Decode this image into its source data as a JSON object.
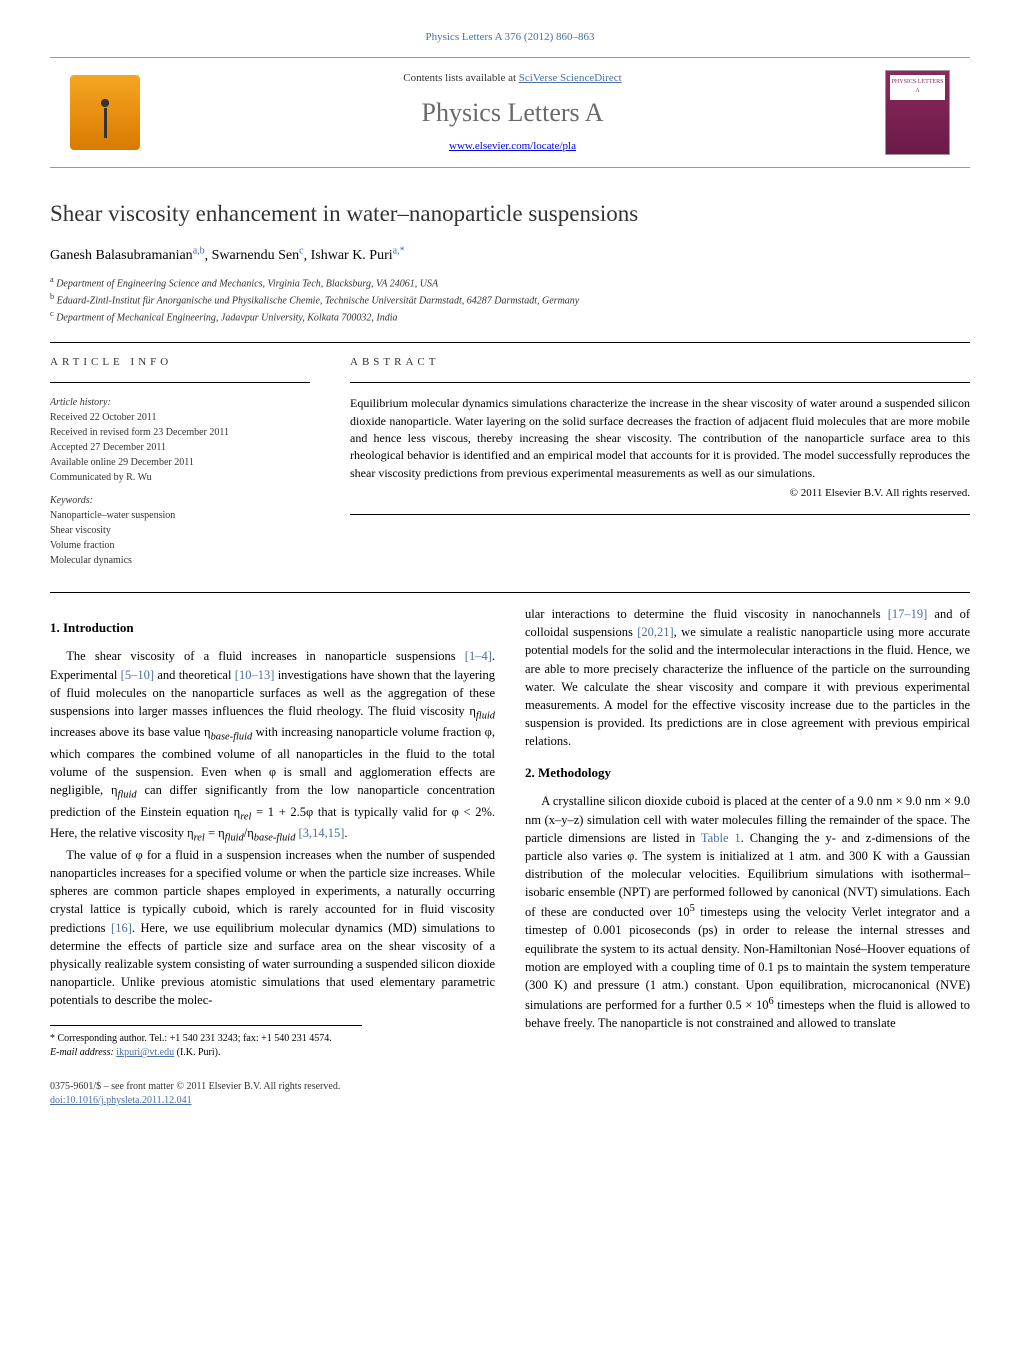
{
  "header": {
    "citation": "Physics Letters A 376 (2012) 860–863",
    "contents_line_prefix": "Contents lists available at ",
    "contents_link": "SciVerse ScienceDirect",
    "journal_name": "Physics Letters A",
    "journal_url": "www.elsevier.com/locate/pla",
    "cover_text": "PHYSICS LETTERS A"
  },
  "title": "Shear viscosity enhancement in water–nanoparticle suspensions",
  "authors": [
    {
      "name": "Ganesh Balasubramanian",
      "affil": "a,b"
    },
    {
      "name": "Swarnendu Sen",
      "affil": "c"
    },
    {
      "name": "Ishwar K. Puri",
      "affil": "a,*"
    }
  ],
  "affiliations": [
    {
      "sup": "a",
      "text": "Department of Engineering Science and Mechanics, Virginia Tech, Blacksburg, VA 24061, USA"
    },
    {
      "sup": "b",
      "text": "Eduard-Zintl-Institut für Anorganische und Physikalische Chemie, Technische Universität Darmstadt, 64287 Darmstadt, Germany"
    },
    {
      "sup": "c",
      "text": "Department of Mechanical Engineering, Jadavpur University, Kolkata 700032, India"
    }
  ],
  "article_info": {
    "heading": "ARTICLE INFO",
    "history_label": "Article history:",
    "history": [
      "Received 22 October 2011",
      "Received in revised form 23 December 2011",
      "Accepted 27 December 2011",
      "Available online 29 December 2011",
      "Communicated by R. Wu"
    ],
    "keywords_label": "Keywords:",
    "keywords": [
      "Nanoparticle–water suspension",
      "Shear viscosity",
      "Volume fraction",
      "Molecular dynamics"
    ]
  },
  "abstract": {
    "heading": "ABSTRACT",
    "text": "Equilibrium molecular dynamics simulations characterize the increase in the shear viscosity of water around a suspended silicon dioxide nanoparticle. Water layering on the solid surface decreases the fraction of adjacent fluid molecules that are more mobile and hence less viscous, thereby increasing the shear viscosity. The contribution of the nanoparticle surface area to this rheological behavior is identified and an empirical model that accounts for it is provided. The model successfully reproduces the shear viscosity predictions from previous experimental measurements as well as our simulations.",
    "copyright": "© 2011 Elsevier B.V. All rights reserved."
  },
  "sections": {
    "introduction": {
      "heading": "1. Introduction",
      "p1_a": "The shear viscosity of a fluid increases in nanoparticle suspensions ",
      "p1_ref1": "[1–4]",
      "p1_b": ". Experimental ",
      "p1_ref2": "[5–10]",
      "p1_c": " and theoretical ",
      "p1_ref3": "[10–13]",
      "p1_d": " investigations have shown that the layering of fluid molecules on the nanoparticle surfaces as well as the aggregation of these suspensions into larger masses influences the fluid rheology. The fluid viscosity η",
      "p1_e": " increases above its base value η",
      "p1_f": " with increasing nanoparticle volume fraction φ, which compares the combined volume of all nanoparticles in the fluid to the total volume of the suspension. Even when φ is small and agglomeration effects are negligible, η",
      "p1_g": " can differ significantly from the low nanoparticle concentration prediction of the Einstein equation η",
      "p1_h": " = 1 + 2.5φ that is typically valid for φ < 2%. Here, the relative viscosity η",
      "p1_i": " = η",
      "p1_j": "/η",
      "p1_k": " ",
      "p1_ref4": "[3,14,15]",
      "p1_l": ".",
      "p2_a": "The value of φ for a fluid in a suspension increases when the number of suspended nanoparticles increases for a specified volume or when the particle size increases. While spheres are common particle shapes employed in experiments, a naturally occurring crystal lattice is typically cuboid, which is rarely accounted for in fluid viscosity predictions ",
      "p2_ref1": "[16]",
      "p2_b": ". Here, we use equilibrium molecular dynamics (MD) simulations to determine the effects of particle size and surface area on the shear viscosity of a physically realizable system consisting of water surrounding a suspended silicon dioxide nanoparticle. Unlike previous atomistic simulations that used elementary parametric potentials to describe the molec-",
      "p3_a": "ular interactions to determine the fluid viscosity in nanochannels ",
      "p3_ref1": "[17–19]",
      "p3_b": " and of colloidal suspensions ",
      "p3_ref2": "[20,21]",
      "p3_c": ", we simulate a realistic nanoparticle using more accurate potential models for the solid and the intermolecular interactions in the fluid. Hence, we are able to more precisely characterize the influence of the particle on the surrounding water. We calculate the shear viscosity and compare it with previous experimental measurements. A model for the effective viscosity increase due to the particles in the suspension is provided. Its predictions are in close agreement with previous empirical relations."
    },
    "methodology": {
      "heading": "2. Methodology",
      "p1_a": "A crystalline silicon dioxide cuboid is placed at the center of a 9.0 nm × 9.0 nm × 9.0 nm (x–y–z) simulation cell with water molecules filling the remainder of the space. The particle dimensions are listed in ",
      "p1_ref1": "Table 1",
      "p1_b": ". Changing the y- and z-dimensions of the particle also varies φ. The system is initialized at 1 atm. and 300 K with a Gaussian distribution of the molecular velocities. Equilibrium simulations with isothermal–isobaric ensemble (NPT) are performed followed by canonical (NVT) simulations. Each of these are conducted over 10",
      "p1_c": " timesteps using the velocity Verlet integrator and a timestep of 0.001 picoseconds (ps) in order to release the internal stresses and equilibrate the system to its actual density. Non-Hamiltonian Nosé–Hoover equations of motion are employed with a coupling time of 0.1 ps to maintain the system temperature (300 K) and pressure (1 atm.) constant. Upon equilibration, microcanonical (NVE) simulations are performed for a further 0.5 × 10",
      "p1_d": " timesteps when the fluid is allowed to behave freely. The nanoparticle is not constrained and allowed to translate"
    }
  },
  "footnote": {
    "corr_label": "* Corresponding author. Tel.: +1 540 231 3243; fax: +1 540 231 4574.",
    "email_label": "E-mail address: ",
    "email": "ikpuri@vt.edu",
    "email_suffix": " (I.K. Puri)."
  },
  "footer": {
    "line1": "0375-9601/$ – see front matter © 2011 Elsevier B.V. All rights reserved.",
    "doi": "doi:10.1016/j.physleta.2011.12.041"
  },
  "subscripts": {
    "fluid": "fluid",
    "base": "base-fluid",
    "rel": "rel"
  }
}
